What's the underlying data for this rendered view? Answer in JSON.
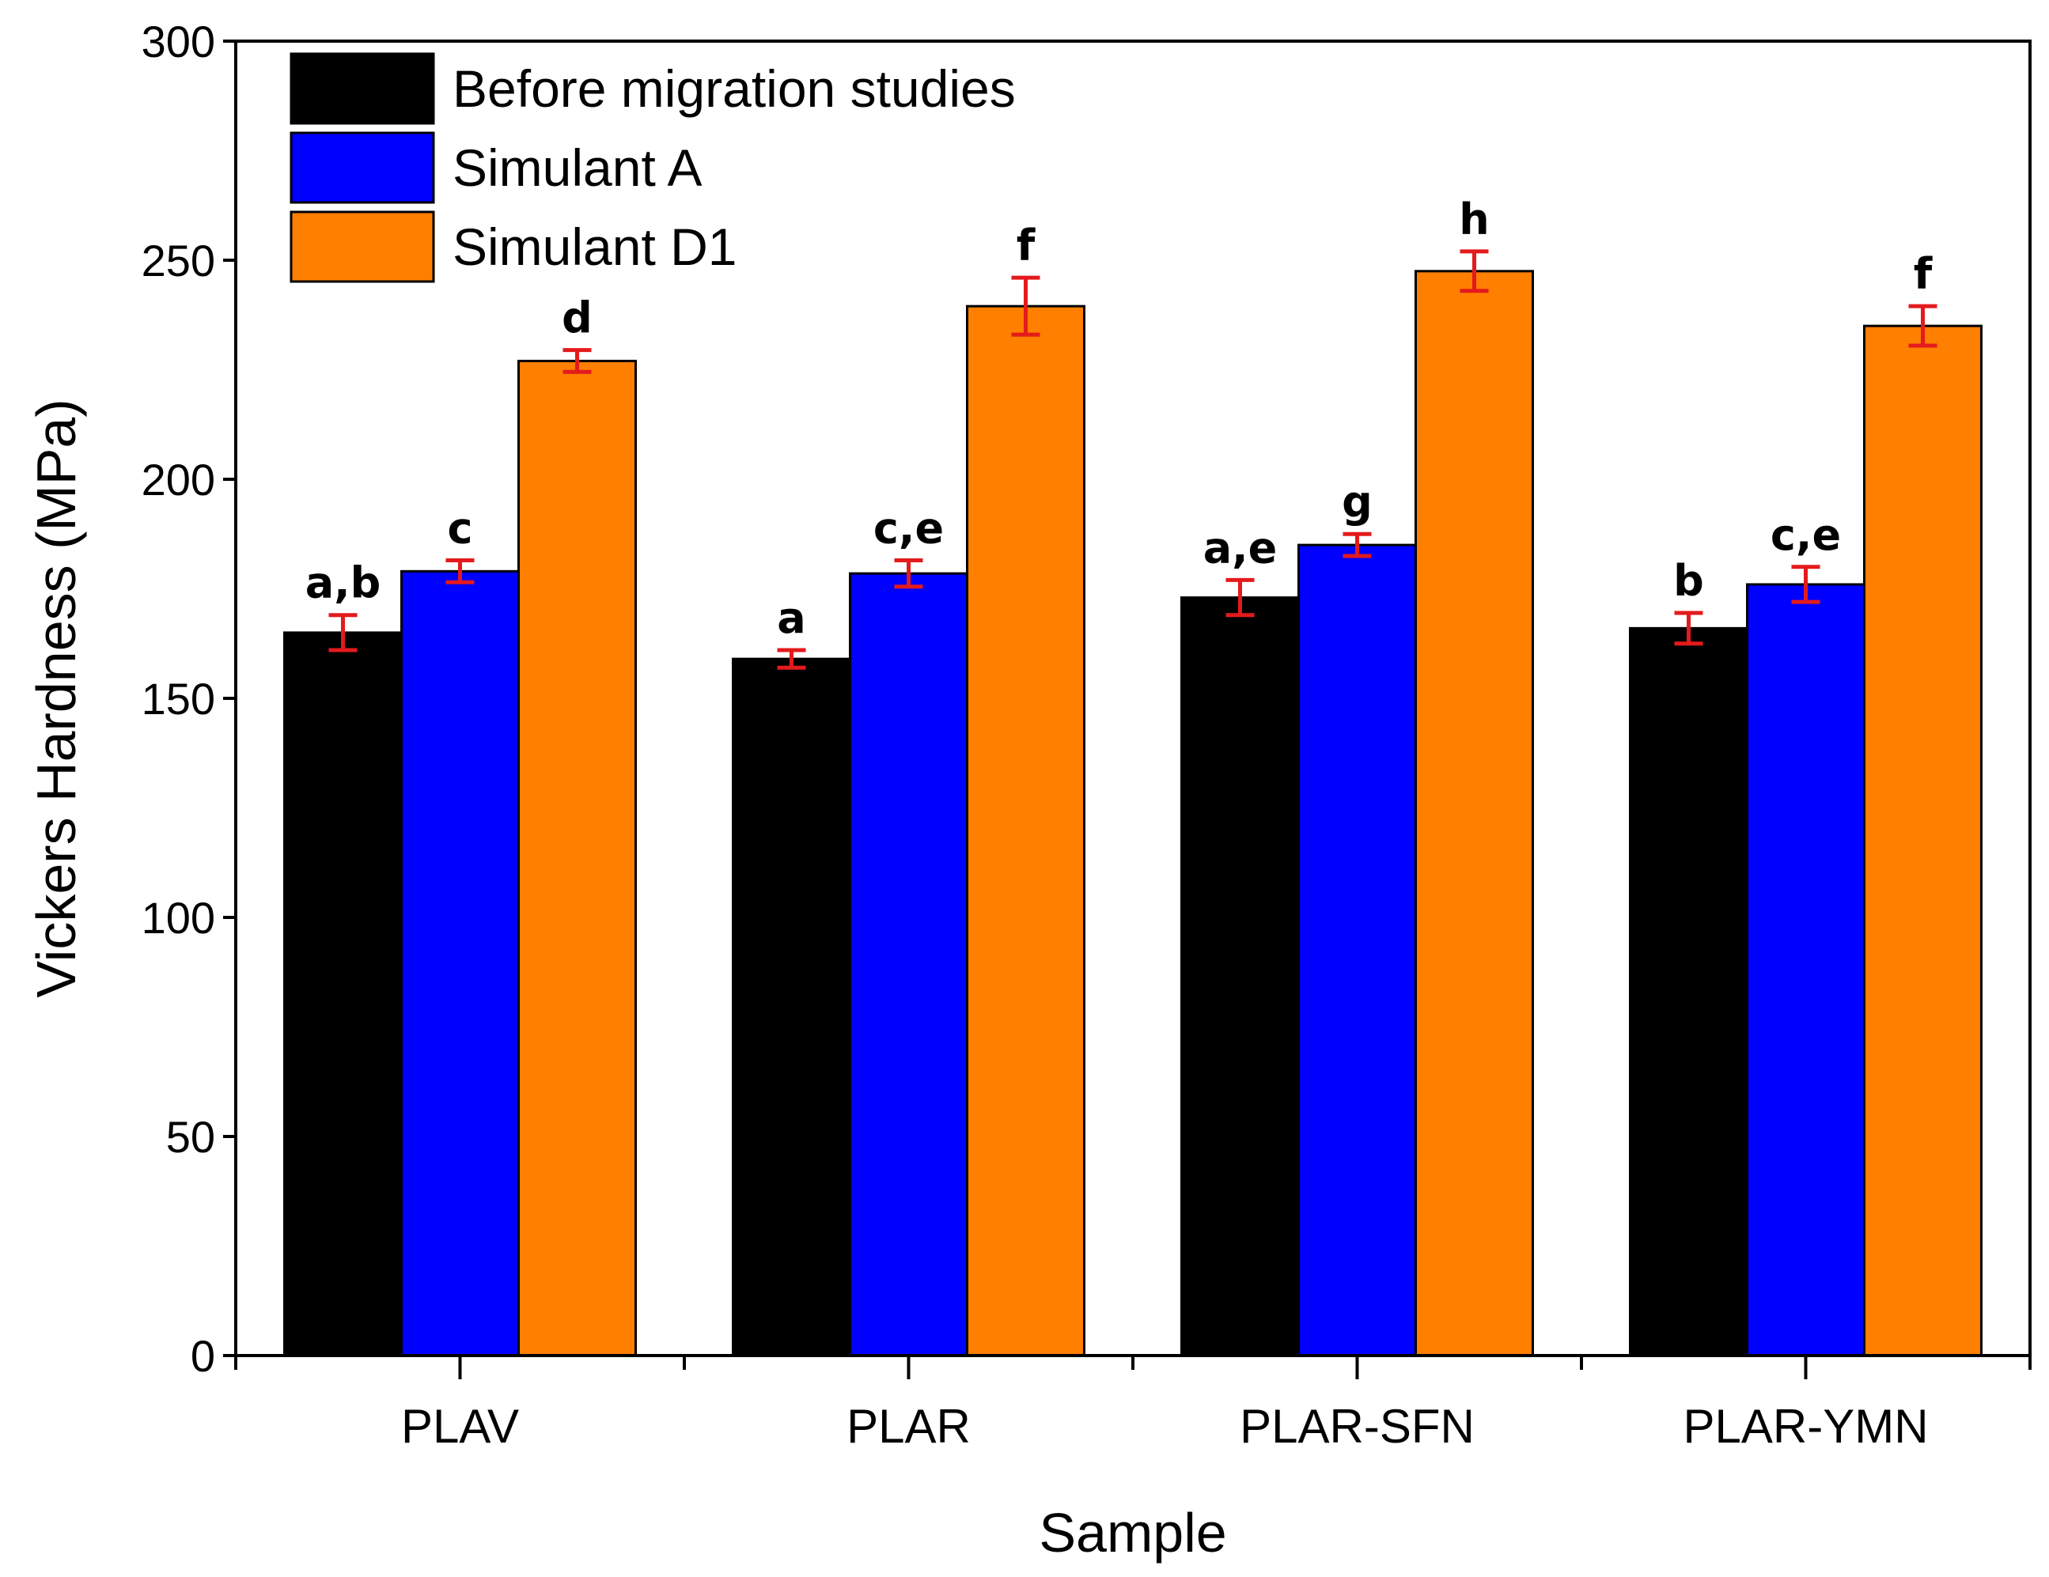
{
  "chart_data": {
    "type": "bar",
    "title": "",
    "xlabel": "Sample",
    "ylabel": "Vickers Hardness (MPa)",
    "ylim": [
      0,
      300
    ],
    "yticks": [
      0,
      50,
      100,
      150,
      200,
      250,
      300
    ],
    "grid": false,
    "legend_position": "top-left",
    "categories": [
      "PLAV",
      "PLAR",
      "PLAR-SFN",
      "PLAR-YMN"
    ],
    "series": [
      {
        "name": "Before migration studies",
        "color": "#000000",
        "values": [
          165,
          159,
          173,
          166
        ],
        "errors": [
          4,
          2,
          4,
          3.5
        ],
        "labels": [
          "a,b",
          "a",
          "a,e",
          "b"
        ]
      },
      {
        "name": "Simulant A",
        "color": "#0000ff",
        "values": [
          179,
          178.5,
          185,
          176
        ],
        "errors": [
          2.5,
          3,
          2.5,
          4
        ],
        "labels": [
          "c",
          "c,e",
          "g",
          "c,e"
        ]
      },
      {
        "name": "Simulant D1",
        "color": "#ff7f00",
        "values": [
          227,
          239.5,
          247.5,
          235
        ],
        "errors": [
          2.5,
          6.5,
          4.5,
          4.5
        ],
        "labels": [
          "d",
          "f",
          "h",
          "f"
        ]
      }
    ],
    "error_bar_color": "#e41a1c"
  }
}
